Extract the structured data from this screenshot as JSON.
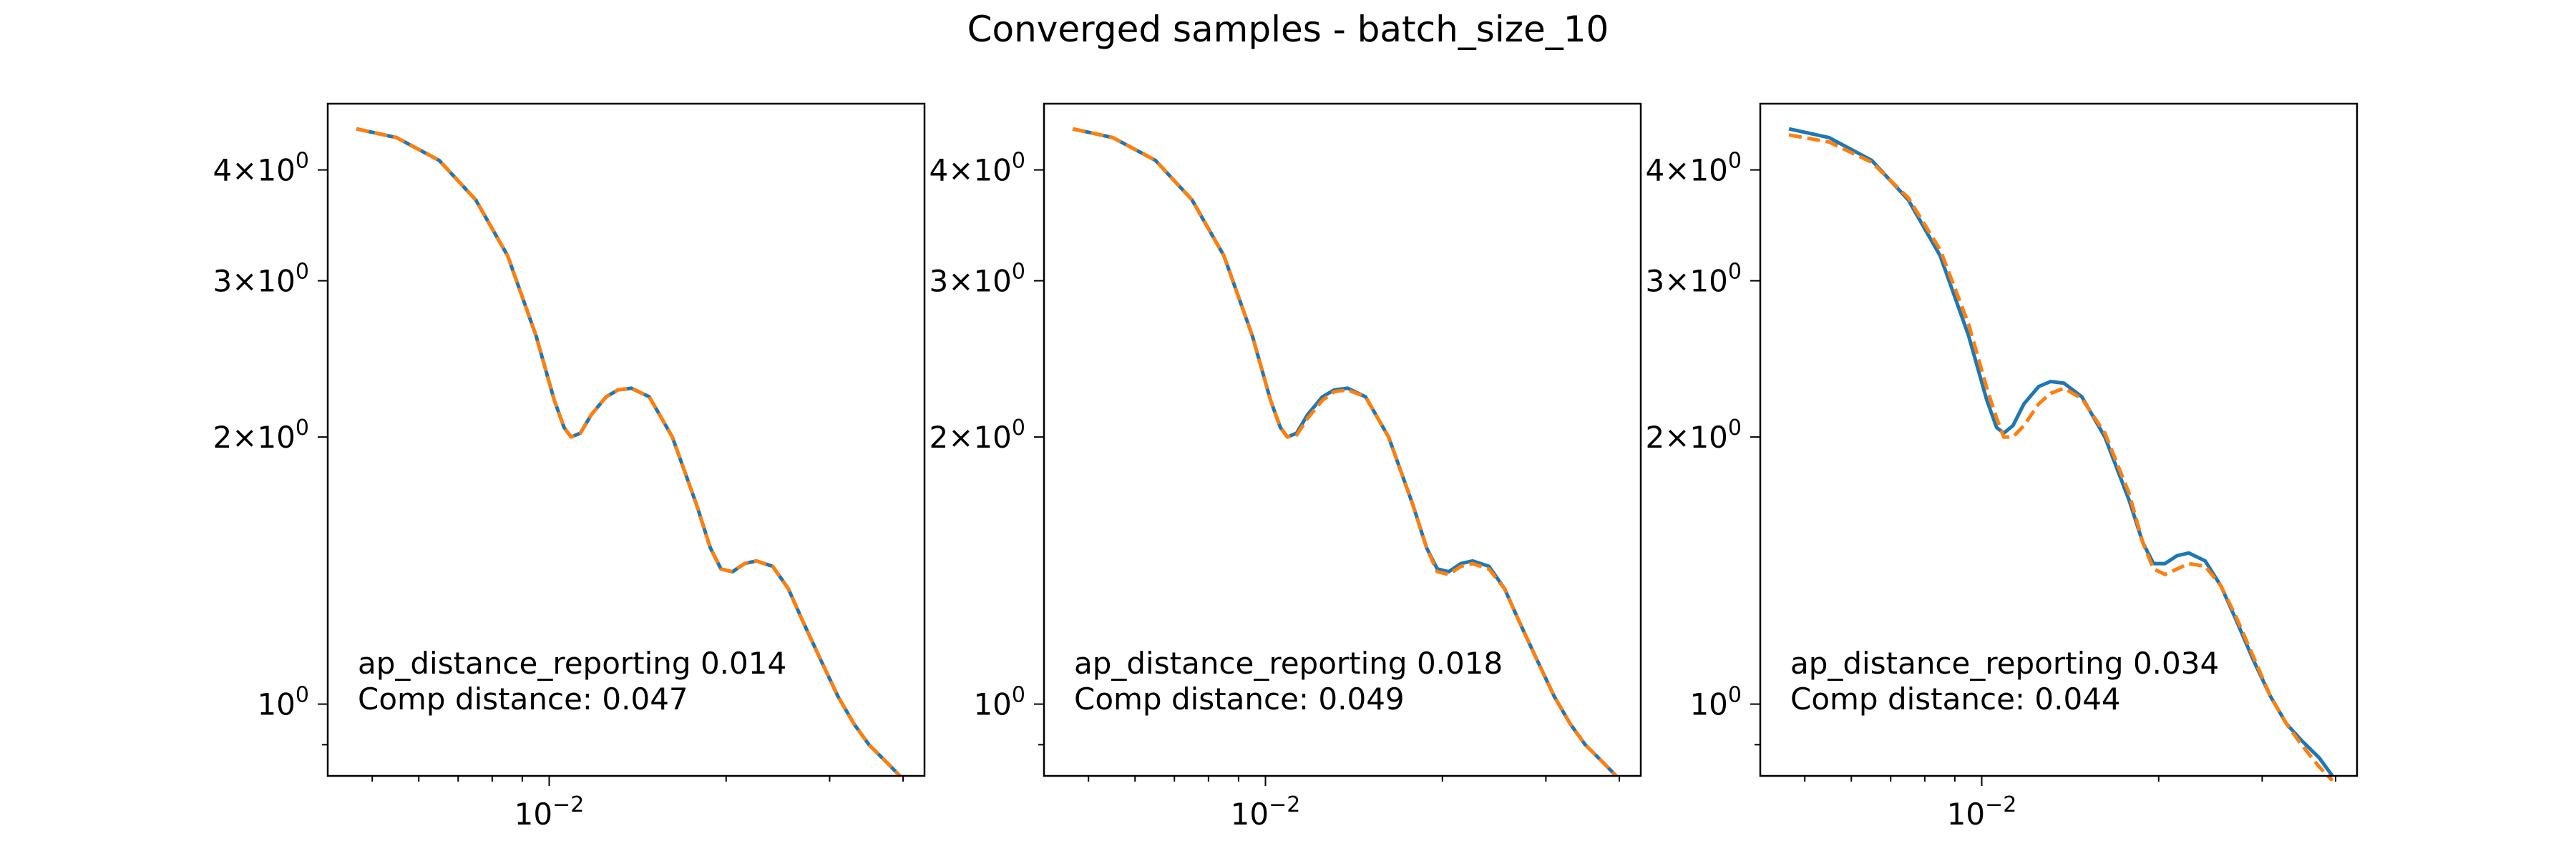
{
  "figure": {
    "suptitle": "Converged samples - batch_size_10"
  },
  "colors": {
    "true_line": "#1f77b4",
    "pred_line": "#ff7f0e",
    "axes": "#000000",
    "background": "#ffffff"
  },
  "chart_data": [
    {
      "type": "line",
      "xscale": "log",
      "yscale": "log",
      "xlim": [
        0.0042,
        0.0435
      ],
      "ylim": [
        0.83,
        4.75
      ],
      "xticks": [
        {
          "value": 0.01,
          "base": "10",
          "exp": "−2"
        }
      ],
      "yticks": [
        {
          "value": 1,
          "mant": "",
          "exp": "0"
        },
        {
          "value": 2,
          "mant": "2",
          "exp": "0"
        },
        {
          "value": 3,
          "mant": "3",
          "exp": "0"
        },
        {
          "value": 4,
          "mant": "4",
          "exp": "0"
        }
      ],
      "grid": false,
      "annotation_lines": [
        "ap_distance_reporting 0.014",
        "Comp distance: 0.047"
      ],
      "series": [
        {
          "style": "solid",
          "color": "#1f77b4",
          "x": [
            0.0047,
            0.0055,
            0.0065,
            0.0075,
            0.0085,
            0.0095,
            0.0102,
            0.0106,
            0.0109,
            0.0113,
            0.0118,
            0.0125,
            0.0131,
            0.0138,
            0.0148,
            0.0162,
            0.0178,
            0.0188,
            0.0196,
            0.0205,
            0.0215,
            0.0225,
            0.024,
            0.0255,
            0.027,
            0.029,
            0.031,
            0.033,
            0.035,
            0.0375,
            0.0395
          ],
          "y": [
            4.45,
            4.35,
            4.1,
            3.7,
            3.2,
            2.6,
            2.2,
            2.05,
            2.0,
            2.02,
            2.12,
            2.22,
            2.26,
            2.27,
            2.22,
            2.0,
            1.68,
            1.5,
            1.42,
            1.41,
            1.44,
            1.45,
            1.43,
            1.35,
            1.24,
            1.12,
            1.02,
            0.95,
            0.9,
            0.86,
            0.83
          ]
        },
        {
          "style": "dashed",
          "color": "#ff7f0e",
          "x": [
            0.0047,
            0.0055,
            0.0065,
            0.0075,
            0.0085,
            0.0095,
            0.0102,
            0.0106,
            0.0109,
            0.0113,
            0.0118,
            0.0125,
            0.0131,
            0.0138,
            0.0148,
            0.0162,
            0.0178,
            0.0188,
            0.0196,
            0.0205,
            0.0215,
            0.0225,
            0.024,
            0.0255,
            0.027,
            0.029,
            0.031,
            0.033,
            0.035,
            0.0375,
            0.0395
          ],
          "y": [
            4.45,
            4.35,
            4.1,
            3.7,
            3.2,
            2.6,
            2.2,
            2.05,
            2.0,
            2.02,
            2.12,
            2.22,
            2.26,
            2.27,
            2.22,
            2.0,
            1.68,
            1.5,
            1.42,
            1.41,
            1.44,
            1.45,
            1.43,
            1.35,
            1.24,
            1.12,
            1.02,
            0.95,
            0.9,
            0.86,
            0.83
          ]
        }
      ]
    },
    {
      "type": "line",
      "xscale": "log",
      "yscale": "log",
      "xlim": [
        0.0042,
        0.0435
      ],
      "ylim": [
        0.83,
        4.75
      ],
      "xticks": [
        {
          "value": 0.01,
          "base": "10",
          "exp": "−2"
        }
      ],
      "yticks": [
        {
          "value": 1,
          "mant": "",
          "exp": "0"
        },
        {
          "value": 2,
          "mant": "2",
          "exp": "0"
        },
        {
          "value": 3,
          "mant": "3",
          "exp": "0"
        },
        {
          "value": 4,
          "mant": "4",
          "exp": "0"
        }
      ],
      "grid": false,
      "annotation_lines": [
        "ap_distance_reporting 0.018",
        "Comp distance: 0.049"
      ],
      "series": [
        {
          "style": "solid",
          "color": "#1f77b4",
          "x": [
            0.0047,
            0.0055,
            0.0065,
            0.0075,
            0.0085,
            0.0095,
            0.0102,
            0.0106,
            0.0109,
            0.0113,
            0.0118,
            0.0125,
            0.0131,
            0.0138,
            0.0148,
            0.0162,
            0.0178,
            0.0188,
            0.0196,
            0.0205,
            0.0215,
            0.0225,
            0.024,
            0.0255,
            0.027,
            0.029,
            0.031,
            0.033,
            0.035,
            0.0375,
            0.0395
          ],
          "y": [
            4.45,
            4.35,
            4.1,
            3.7,
            3.2,
            2.6,
            2.2,
            2.05,
            2.0,
            2.02,
            2.12,
            2.22,
            2.26,
            2.27,
            2.22,
            2.0,
            1.68,
            1.5,
            1.42,
            1.41,
            1.44,
            1.45,
            1.43,
            1.35,
            1.24,
            1.12,
            1.02,
            0.95,
            0.9,
            0.86,
            0.83
          ]
        },
        {
          "style": "dashed",
          "color": "#ff7f0e",
          "x": [
            0.0047,
            0.0055,
            0.0065,
            0.0075,
            0.0085,
            0.0095,
            0.0102,
            0.0106,
            0.0109,
            0.0113,
            0.0118,
            0.0125,
            0.0131,
            0.0138,
            0.0148,
            0.0162,
            0.0178,
            0.0188,
            0.0196,
            0.0205,
            0.0215,
            0.0225,
            0.024,
            0.0255,
            0.027,
            0.029,
            0.031,
            0.033,
            0.035,
            0.0375,
            0.0395
          ],
          "y": [
            4.45,
            4.35,
            4.1,
            3.7,
            3.2,
            2.6,
            2.2,
            2.05,
            2.0,
            2.01,
            2.1,
            2.2,
            2.25,
            2.26,
            2.22,
            2.0,
            1.68,
            1.5,
            1.41,
            1.4,
            1.43,
            1.44,
            1.42,
            1.35,
            1.24,
            1.12,
            1.02,
            0.95,
            0.9,
            0.86,
            0.83
          ]
        }
      ]
    },
    {
      "type": "line",
      "xscale": "log",
      "yscale": "log",
      "xlim": [
        0.0042,
        0.0435
      ],
      "ylim": [
        0.83,
        4.75
      ],
      "xticks": [
        {
          "value": 0.01,
          "base": "10",
          "exp": "−2"
        }
      ],
      "yticks": [
        {
          "value": 1,
          "mant": "",
          "exp": "0"
        },
        {
          "value": 2,
          "mant": "2",
          "exp": "0"
        },
        {
          "value": 3,
          "mant": "3",
          "exp": "0"
        },
        {
          "value": 4,
          "mant": "4",
          "exp": "0"
        }
      ],
      "grid": false,
      "annotation_lines": [
        "ap_distance_reporting 0.034",
        "Comp distance: 0.044"
      ],
      "series": [
        {
          "style": "solid",
          "color": "#1f77b4",
          "x": [
            0.0047,
            0.0055,
            0.0065,
            0.0075,
            0.0085,
            0.0095,
            0.0102,
            0.0106,
            0.0109,
            0.0113,
            0.0118,
            0.0125,
            0.0131,
            0.0138,
            0.0148,
            0.0162,
            0.0178,
            0.0188,
            0.0196,
            0.0205,
            0.0215,
            0.0225,
            0.024,
            0.0255,
            0.027,
            0.029,
            0.031,
            0.033,
            0.035,
            0.0375,
            0.0395
          ],
          "y": [
            4.45,
            4.35,
            4.1,
            3.7,
            3.2,
            2.6,
            2.2,
            2.05,
            2.02,
            2.06,
            2.18,
            2.28,
            2.31,
            2.3,
            2.22,
            2.0,
            1.7,
            1.52,
            1.44,
            1.44,
            1.47,
            1.48,
            1.45,
            1.36,
            1.25,
            1.12,
            1.02,
            0.95,
            0.91,
            0.87,
            0.83
          ]
        },
        {
          "style": "dashed",
          "color": "#ff7f0e",
          "x": [
            0.0047,
            0.0055,
            0.0065,
            0.0075,
            0.0085,
            0.0095,
            0.0102,
            0.0106,
            0.0109,
            0.0113,
            0.0118,
            0.0125,
            0.0131,
            0.0138,
            0.0148,
            0.0162,
            0.0178,
            0.0188,
            0.0196,
            0.0205,
            0.0215,
            0.0225,
            0.024,
            0.0255,
            0.027,
            0.029,
            0.031,
            0.033,
            0.035,
            0.0375,
            0.0395
          ],
          "y": [
            4.38,
            4.3,
            4.08,
            3.72,
            3.25,
            2.68,
            2.27,
            2.1,
            2.0,
            2.0,
            2.06,
            2.18,
            2.24,
            2.27,
            2.21,
            2.02,
            1.73,
            1.52,
            1.42,
            1.4,
            1.42,
            1.44,
            1.43,
            1.36,
            1.26,
            1.13,
            1.02,
            0.95,
            0.9,
            0.85,
            0.82
          ]
        }
      ]
    }
  ]
}
